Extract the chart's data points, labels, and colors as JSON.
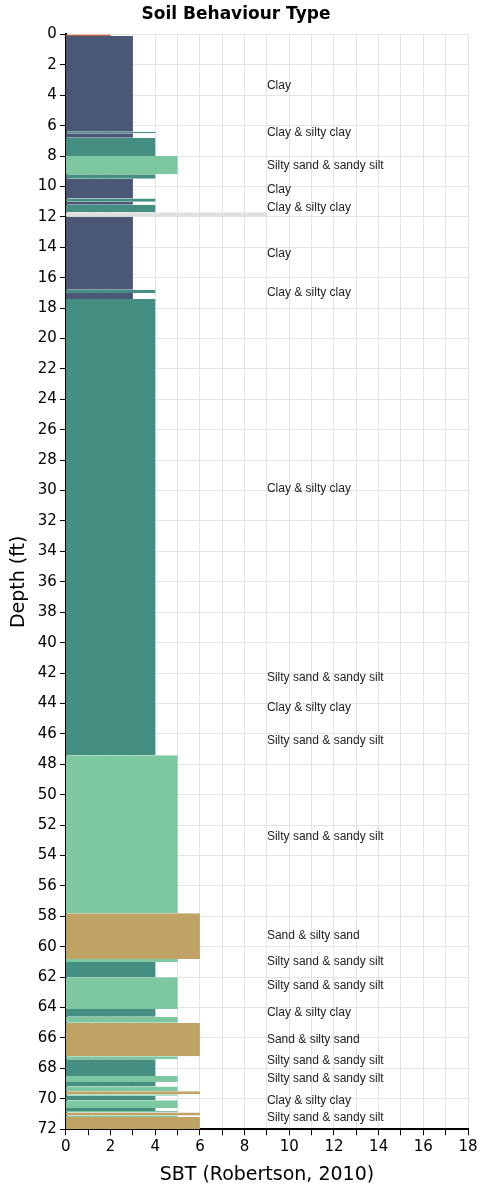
{
  "chart_data": {
    "type": "area",
    "orientation": "horizontal",
    "title": "Soil Behaviour Type",
    "xlabel": "SBT (Robertson, 2010)",
    "ylabel": "Depth (ft)",
    "xlim": [
      0,
      18
    ],
    "xticks": [
      0,
      {
        "value": 1,
        "label": null
      },
      2,
      {
        "value": 3,
        "label": null
      },
      4,
      {
        "value": 5,
        "label": null
      },
      6,
      {
        "value": 7,
        "label": null
      },
      8,
      {
        "value": 9,
        "label": null
      },
      10,
      {
        "value": 11,
        "label": null
      },
      12,
      {
        "value": 13,
        "label": null
      },
      14,
      {
        "value": 15,
        "label": null
      },
      16,
      {
        "value": 17,
        "label": null
      },
      18
    ],
    "ylim": [
      72,
      0
    ],
    "yticks": [
      0,
      2,
      4,
      6,
      8,
      10,
      12,
      14,
      16,
      18,
      20,
      22,
      24,
      26,
      28,
      30,
      32,
      34,
      36,
      38,
      40,
      42,
      44,
      46,
      48,
      50,
      52,
      54,
      56,
      58,
      60,
      62,
      64,
      66,
      68,
      70,
      72
    ],
    "grid": true,
    "series": [
      {
        "color": "#c0643a",
        "x": [
          0,
          0.1
        ],
        "values": [
          2,
          2
        ]
      },
      {
        "color": "#4a5775",
        "x": [
          0.1,
          6.4,
          null,
          6.5,
          6.8,
          null,
          9.5,
          10.8,
          null,
          11.0,
          11.2,
          null,
          12.0,
          16.8,
          null,
          17.0,
          17.4
        ],
        "values": [
          3,
          3,
          null,
          3,
          3,
          null,
          3,
          3,
          null,
          3,
          3,
          null,
          3,
          3,
          null,
          3,
          3
        ]
      },
      {
        "color": "#458f82",
        "x": [
          6.4,
          6.5,
          null,
          6.8,
          8.0,
          null,
          9.2,
          9.5,
          null,
          10.8,
          11.0,
          null,
          11.2,
          11.7,
          null,
          16.8,
          17.0,
          null,
          17.4,
          47.4,
          null,
          61.0,
          62.0,
          null,
          64.1,
          64.6,
          null,
          67.4,
          68.5,
          null,
          68.9,
          69.2,
          null,
          69.8,
          70.1,
          null,
          70.6,
          70.8
        ],
        "values": [
          4,
          4,
          null,
          4,
          4,
          null,
          4,
          4,
          null,
          4,
          4,
          null,
          4,
          4,
          null,
          4,
          4,
          null,
          4,
          4,
          null,
          4,
          4,
          null,
          4,
          4,
          null,
          4,
          4,
          null,
          4,
          4,
          null,
          4,
          4,
          null,
          4,
          4
        ]
      },
      {
        "color": "#7dc8a0",
        "x": [
          8.0,
          9.2,
          null,
          47.4,
          57.8,
          null,
          60.8,
          61.0,
          null,
          62.0,
          64.1,
          null,
          64.6,
          65.0,
          null,
          67.2,
          67.4,
          null,
          68.5,
          68.9,
          null,
          69.2,
          69.5,
          null,
          69.7,
          69.8,
          null,
          70.1,
          70.6,
          null,
          70.8,
          70.9,
          null,
          71.1,
          71.2
        ],
        "values": [
          5,
          5,
          null,
          5,
          5,
          null,
          5,
          5,
          null,
          5,
          5,
          null,
          5,
          5,
          null,
          5,
          5,
          null,
          5,
          5,
          null,
          5,
          5,
          null,
          5,
          5,
          null,
          5,
          5,
          null,
          5,
          5,
          null,
          5,
          5
        ]
      },
      {
        "color": "#c0a265",
        "x": [
          57.8,
          60.8,
          null,
          65.0,
          67.2,
          null,
          69.5,
          69.7,
          null,
          70.9,
          71.1,
          null,
          71.2,
          72
        ],
        "values": [
          6,
          6,
          null,
          6,
          6,
          null,
          6,
          6,
          null,
          6,
          6,
          null,
          6,
          6
        ]
      },
      {
        "color": "#e0e0e0",
        "x": [
          11.7,
          12.0
        ],
        "values": [
          9,
          9
        ]
      }
    ],
    "annotations": [
      "Clay",
      "Clay & silty clay",
      "Silty sand & sandy silt",
      "Clay",
      "Clay & silty clay",
      "Clay",
      "Clay & silty clay",
      "Clay & silty clay",
      "Silty sand & sandy silt",
      "Clay & silty clay",
      "Silty sand & sandy silt",
      "Silty sand & sandy silt",
      "Sand & silty sand",
      "Silty sand & sandy silt",
      "Silty sand & sandy silt",
      "Clay & silty clay",
      "Sand & silty sand",
      "Silty sand & sandy silt",
      "Silty sand & sandy silt",
      "Clay & silty clay",
      "Silty sand & sandy silt"
    ]
  }
}
